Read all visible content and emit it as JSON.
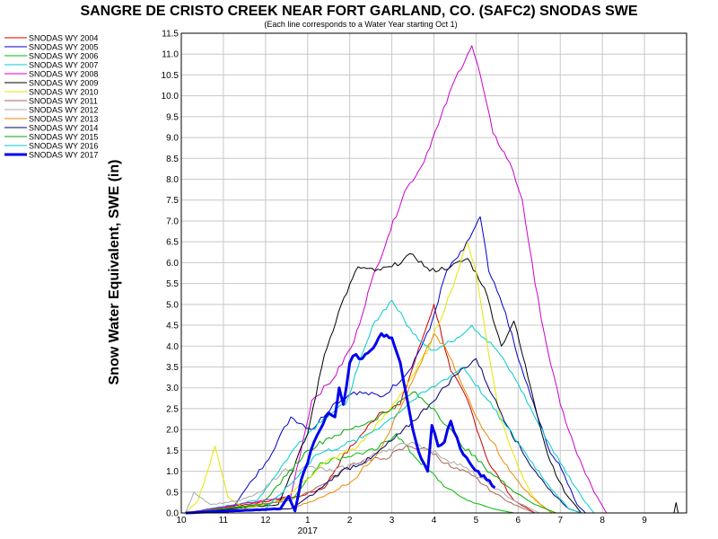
{
  "chart_data": {
    "type": "line",
    "title": "SANGRE DE CRISTO CREEK NEAR FORT GARLAND, CO. (SAFC2) SNODAS SWE",
    "subtitle": "(Each line corresponds to a Water Year starting Oct 1)",
    "ylabel": "Snow Water Equivalent, SWE (in)",
    "xlabel": "",
    "x_ticks": [
      "10",
      "11",
      "12",
      "1",
      "2",
      "3",
      "4",
      "5",
      "6",
      "7",
      "8",
      "9"
    ],
    "x_year_label": "2017",
    "y_ticks": [
      "0.0",
      "0.5",
      "1.0",
      "1.5",
      "2.0",
      "2.5",
      "3.0",
      "3.5",
      "4.0",
      "4.5",
      "5.0",
      "5.5",
      "6.0",
      "6.5",
      "7.0",
      "7.5",
      "8.0",
      "8.5",
      "9.0",
      "9.5",
      "10.0",
      "10.5",
      "11.0",
      "11.5"
    ],
    "ylim": [
      0,
      11.5
    ],
    "xlim_months": [
      10,
      22
    ],
    "grid": true,
    "legend_position": "left",
    "series": [
      {
        "name": "SNODAS WY 2004",
        "color": "#cc0000",
        "width": 1,
        "points": [
          [
            10.1,
            0
          ],
          [
            11.5,
            0.2
          ],
          [
            12.8,
            0.4
          ],
          [
            13.4,
            0.6
          ],
          [
            13.8,
            1.3
          ],
          [
            14.3,
            1.9
          ],
          [
            14.7,
            2.4
          ],
          [
            15.2,
            2.6
          ],
          [
            15.7,
            4.1
          ],
          [
            16.0,
            5.0
          ],
          [
            16.4,
            3.4
          ],
          [
            16.8,
            2.7
          ],
          [
            17.3,
            1.2
          ],
          [
            17.9,
            0.3
          ],
          [
            18.4,
            0
          ]
        ]
      },
      {
        "name": "SNODAS WY 2005",
        "color": "#0000cc",
        "width": 1,
        "points": [
          [
            10.1,
            0
          ],
          [
            11.2,
            0.1
          ],
          [
            11.7,
            0.8
          ],
          [
            12.0,
            1.2
          ],
          [
            12.6,
            2.3
          ],
          [
            13.1,
            2.0
          ],
          [
            13.6,
            2.6
          ],
          [
            14.1,
            2.9
          ],
          [
            14.8,
            2.8
          ],
          [
            15.4,
            3.4
          ],
          [
            15.9,
            4.4
          ],
          [
            16.3,
            5.8
          ],
          [
            16.7,
            6.3
          ],
          [
            17.0,
            6.9
          ],
          [
            17.1,
            7.1
          ],
          [
            17.3,
            5.8
          ],
          [
            17.7,
            4.8
          ],
          [
            18.0,
            3.7
          ],
          [
            18.3,
            2.8
          ],
          [
            18.7,
            1.6
          ],
          [
            19.1,
            0.9
          ],
          [
            19.4,
            0.2
          ],
          [
            19.6,
            0
          ]
        ]
      },
      {
        "name": "SNODAS WY 2006",
        "color": "#00bb00",
        "width": 1,
        "points": [
          [
            10.1,
            0
          ],
          [
            12.0,
            0.2
          ],
          [
            12.7,
            0.4
          ],
          [
            13.3,
            1.2
          ],
          [
            13.7,
            1.3
          ],
          [
            14.1,
            1.4
          ],
          [
            14.6,
            1.5
          ],
          [
            15.1,
            1.9
          ],
          [
            15.5,
            1.4
          ],
          [
            15.9,
            1.0
          ],
          [
            16.3,
            0.6
          ],
          [
            16.8,
            0.3
          ],
          [
            17.4,
            0.1
          ],
          [
            17.9,
            0
          ]
        ]
      },
      {
        "name": "SNODAS WY 2007",
        "color": "#00cccc",
        "width": 1,
        "points": [
          [
            10.1,
            0
          ],
          [
            11.8,
            0.3
          ],
          [
            12.8,
            1.7
          ],
          [
            13.4,
            2.3
          ],
          [
            13.9,
            2.6
          ],
          [
            14.2,
            3.5
          ],
          [
            14.6,
            4.6
          ],
          [
            15.0,
            5.1
          ],
          [
            15.5,
            4.3
          ],
          [
            16.0,
            3.9
          ],
          [
            16.4,
            4.1
          ],
          [
            16.9,
            4.5
          ],
          [
            17.5,
            3.9
          ],
          [
            18.0,
            3.1
          ],
          [
            18.5,
            2.1
          ],
          [
            19.0,
            1.2
          ],
          [
            19.5,
            0.4
          ],
          [
            19.8,
            0
          ]
        ]
      },
      {
        "name": "SNODAS WY 2008",
        "color": "#cc00cc",
        "width": 1,
        "points": [
          [
            10.1,
            0
          ],
          [
            12.6,
            0.4
          ],
          [
            13.1,
            2.7
          ],
          [
            13.6,
            3.2
          ],
          [
            14.1,
            4.1
          ],
          [
            14.5,
            5.5
          ],
          [
            14.9,
            6.6
          ],
          [
            15.3,
            7.7
          ],
          [
            15.7,
            8.3
          ],
          [
            16.1,
            9.3
          ],
          [
            16.5,
            10.4
          ],
          [
            16.8,
            11.0
          ],
          [
            16.9,
            11.2
          ],
          [
            17.1,
            10.5
          ],
          [
            17.4,
            9.1
          ],
          [
            17.8,
            8.4
          ],
          [
            18.1,
            7.5
          ],
          [
            18.4,
            5.5
          ],
          [
            18.7,
            3.9
          ],
          [
            19.0,
            2.6
          ],
          [
            19.4,
            1.4
          ],
          [
            19.8,
            0.5
          ],
          [
            20.1,
            0
          ]
        ]
      },
      {
        "name": "SNODAS WY 2009",
        "color": "#000000",
        "width": 1,
        "points": [
          [
            10.1,
            0
          ],
          [
            12.3,
            0.2
          ],
          [
            13.0,
            1.9
          ],
          [
            13.4,
            3.8
          ],
          [
            13.8,
            5.0
          ],
          [
            14.2,
            5.9
          ],
          [
            14.6,
            5.8
          ],
          [
            15.0,
            5.9
          ],
          [
            15.5,
            6.2
          ],
          [
            15.9,
            5.8
          ],
          [
            16.4,
            5.9
          ],
          [
            16.8,
            6.1
          ],
          [
            17.2,
            5.4
          ],
          [
            17.6,
            4.0
          ],
          [
            17.9,
            4.6
          ],
          [
            18.3,
            3.0
          ],
          [
            18.7,
            1.4
          ],
          [
            19.1,
            0.5
          ],
          [
            19.5,
            0
          ]
        ]
      },
      {
        "name": "SNODAS WY 2010",
        "color": "#e6e600",
        "width": 1,
        "points": [
          [
            10.1,
            0
          ],
          [
            10.4,
            0.3
          ],
          [
            10.8,
            1.6
          ],
          [
            11.1,
            0.4
          ],
          [
            11.5,
            0.1
          ],
          [
            12.4,
            0.3
          ],
          [
            13.4,
            1.2
          ],
          [
            14.2,
            1.6
          ],
          [
            14.9,
            2.4
          ],
          [
            15.5,
            3.3
          ],
          [
            15.9,
            4.0
          ],
          [
            16.4,
            5.3
          ],
          [
            16.8,
            6.5
          ],
          [
            17.0,
            5.8
          ],
          [
            17.3,
            3.8
          ],
          [
            17.6,
            2.2
          ],
          [
            18.0,
            1.1
          ],
          [
            18.4,
            0.3
          ],
          [
            18.8,
            0
          ]
        ]
      },
      {
        "name": "SNODAS WY 2011",
        "color": "#aa6655",
        "width": 1,
        "points": [
          [
            10.1,
            0
          ],
          [
            12.6,
            0.3
          ],
          [
            13.4,
            0.7
          ],
          [
            14.1,
            1.2
          ],
          [
            14.8,
            1.3
          ],
          [
            15.4,
            1.6
          ],
          [
            15.9,
            1.5
          ],
          [
            16.4,
            1.1
          ],
          [
            16.9,
            0.9
          ],
          [
            17.4,
            0.5
          ],
          [
            17.9,
            0.2
          ],
          [
            18.4,
            0
          ]
        ]
      },
      {
        "name": "SNODAS WY 2012",
        "color": "#aaaaaa",
        "width": 1,
        "points": [
          [
            10.1,
            0
          ],
          [
            10.3,
            0.5
          ],
          [
            10.7,
            0.2
          ],
          [
            11.4,
            0.3
          ],
          [
            11.9,
            0.5
          ],
          [
            12.4,
            1.0
          ],
          [
            13.0,
            1.1
          ],
          [
            13.6,
            1.0
          ],
          [
            14.2,
            1.2
          ],
          [
            14.8,
            1.5
          ],
          [
            15.5,
            1.7
          ],
          [
            16.1,
            1.4
          ],
          [
            16.7,
            1.1
          ],
          [
            17.3,
            0.7
          ],
          [
            17.9,
            0.3
          ],
          [
            18.5,
            0
          ]
        ]
      },
      {
        "name": "SNODAS WY 2013",
        "color": "#ee8800",
        "width": 1,
        "points": [
          [
            10.1,
            0
          ],
          [
            12.6,
            0.1
          ],
          [
            13.4,
            0.4
          ],
          [
            14.1,
            0.8
          ],
          [
            14.7,
            1.5
          ],
          [
            15.2,
            2.5
          ],
          [
            15.7,
            3.6
          ],
          [
            16.0,
            4.3
          ],
          [
            16.3,
            3.9
          ],
          [
            16.7,
            3.0
          ],
          [
            17.0,
            2.3
          ],
          [
            17.4,
            1.7
          ],
          [
            17.8,
            1.0
          ],
          [
            18.3,
            0.4
          ],
          [
            18.8,
            0
          ]
        ]
      },
      {
        "name": "SNODAS WY 2014",
        "color": "#000066",
        "width": 1,
        "points": [
          [
            10.1,
            0
          ],
          [
            12.6,
            0.1
          ],
          [
            13.2,
            0.5
          ],
          [
            13.8,
            1.0
          ],
          [
            14.5,
            1.3
          ],
          [
            15.2,
            1.9
          ],
          [
            15.9,
            2.6
          ],
          [
            16.5,
            3.3
          ],
          [
            17.0,
            3.7
          ],
          [
            17.4,
            2.8
          ],
          [
            17.8,
            2.0
          ],
          [
            18.2,
            1.3
          ],
          [
            18.7,
            0.6
          ],
          [
            19.2,
            0.1
          ],
          [
            19.5,
            0
          ]
        ]
      },
      {
        "name": "SNODAS WY 2015",
        "color": "#00aa00",
        "width": 1,
        "points": [
          [
            10.1,
            0
          ],
          [
            11.9,
            0.2
          ],
          [
            12.5,
            0.9
          ],
          [
            13.0,
            1.5
          ],
          [
            13.5,
            1.8
          ],
          [
            14.0,
            2.0
          ],
          [
            14.5,
            2.2
          ],
          [
            15.0,
            2.5
          ],
          [
            15.5,
            2.9
          ],
          [
            16.0,
            2.5
          ],
          [
            16.6,
            1.7
          ],
          [
            17.2,
            1.1
          ],
          [
            17.8,
            0.6
          ],
          [
            18.4,
            0.2
          ],
          [
            18.9,
            0
          ]
        ]
      },
      {
        "name": "SNODAS WY 2016",
        "color": "#00cccc",
        "width": 1,
        "points": [
          [
            10.1,
            0
          ],
          [
            12.0,
            0.1
          ],
          [
            12.7,
            0.8
          ],
          [
            13.2,
            1.4
          ],
          [
            13.8,
            1.6
          ],
          [
            14.3,
            1.8
          ],
          [
            14.9,
            2.2
          ],
          [
            15.5,
            2.7
          ],
          [
            16.1,
            3.1
          ],
          [
            16.7,
            3.5
          ],
          [
            17.2,
            2.8
          ],
          [
            17.7,
            2.1
          ],
          [
            18.2,
            1.4
          ],
          [
            18.7,
            0.7
          ],
          [
            19.2,
            0.1
          ],
          [
            19.5,
            0
          ]
        ]
      },
      {
        "name": "SNODAS WY 2017",
        "color": "#0000ee",
        "width": 3,
        "points": [
          [
            10.1,
            0
          ],
          [
            12.35,
            0.1
          ],
          [
            12.55,
            0.4
          ],
          [
            12.7,
            0.05
          ],
          [
            12.85,
            0.8
          ],
          [
            13.0,
            1.2
          ],
          [
            13.15,
            1.7
          ],
          [
            13.3,
            2.0
          ],
          [
            13.5,
            2.4
          ],
          [
            13.65,
            2.3
          ],
          [
            13.75,
            3.0
          ],
          [
            13.85,
            2.6
          ],
          [
            14.0,
            3.6
          ],
          [
            14.15,
            3.8
          ],
          [
            14.3,
            3.7
          ],
          [
            14.5,
            3.9
          ],
          [
            14.75,
            4.3
          ],
          [
            15.0,
            4.2
          ],
          [
            15.2,
            3.6
          ],
          [
            15.35,
            2.8
          ],
          [
            15.5,
            2.0
          ],
          [
            15.7,
            1.3
          ],
          [
            15.85,
            1.0
          ],
          [
            15.95,
            2.1
          ],
          [
            16.1,
            1.6
          ],
          [
            16.25,
            1.7
          ],
          [
            16.4,
            2.2
          ],
          [
            16.55,
            1.8
          ],
          [
            16.7,
            1.4
          ],
          [
            16.85,
            1.2
          ],
          [
            17.05,
            1.0
          ],
          [
            17.25,
            0.8
          ],
          [
            17.45,
            0.6
          ]
        ]
      }
    ]
  }
}
